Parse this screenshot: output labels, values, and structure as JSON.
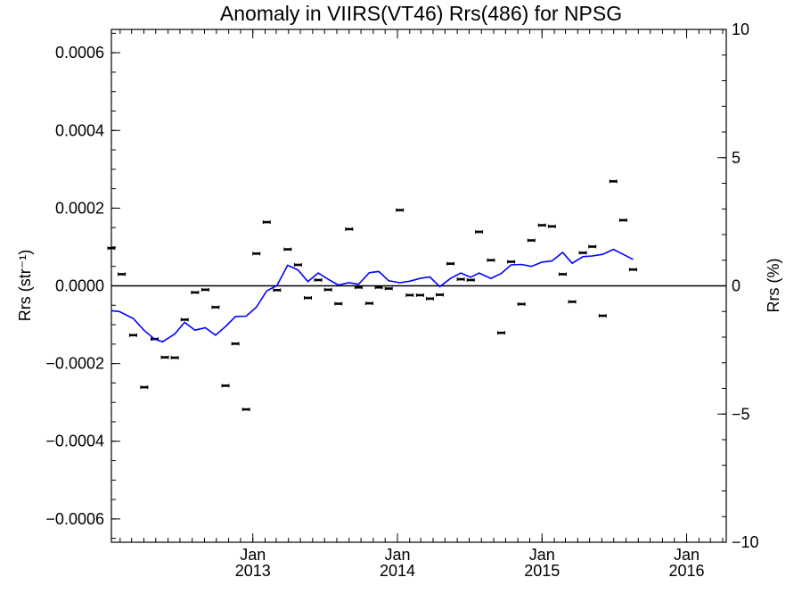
{
  "chart_data": {
    "type": "scatter",
    "title": "Anomaly in VIIRS(VT46) Rrs(486) for NPSG",
    "ylabel": "Rrs (str⁻¹)",
    "y2label": "Rrs (%)",
    "ylim": [
      -0.00066,
      0.00066
    ],
    "y2lim": [
      -10,
      10
    ],
    "xlim": [
      "2012-01-10",
      "2016-04-10"
    ],
    "yticks": [
      {
        "value": 0.0006,
        "label": "0.0006"
      },
      {
        "value": 0.0004,
        "label": "0.0004"
      },
      {
        "value": 0.0002,
        "label": "0.0002"
      },
      {
        "value": 0.0,
        "label": "0.0000"
      },
      {
        "value": -0.0002,
        "label": "−0.0002"
      },
      {
        "value": -0.0004,
        "label": "−0.0004"
      },
      {
        "value": -0.0006,
        "label": "−0.0006"
      }
    ],
    "y2ticks": [
      {
        "value": 10,
        "label": "10"
      },
      {
        "value": 5,
        "label": "5"
      },
      {
        "value": 0,
        "label": "0"
      },
      {
        "value": -5,
        "label": "−5"
      },
      {
        "value": -10,
        "label": "−10"
      }
    ],
    "xticks": [
      {
        "date": "2013-01-01",
        "line1": "Jan",
        "line2": "2013"
      },
      {
        "date": "2014-01-01",
        "line1": "Jan",
        "line2": "2014"
      },
      {
        "date": "2015-01-01",
        "line1": "Jan",
        "line2": "2015"
      },
      {
        "date": "2016-01-01",
        "line1": "Jan",
        "line2": "2016"
      }
    ],
    "series": [
      {
        "style": "points",
        "color": "#000000",
        "points": [
          [
            "2012-01-10",
            9.7e-05
          ],
          [
            "2012-02-05",
            3e-05
          ],
          [
            "2012-03-05",
            -0.000127
          ],
          [
            "2012-04-02",
            -0.000261
          ],
          [
            "2012-04-28",
            -0.000137
          ],
          [
            "2012-05-24",
            -0.000184
          ],
          [
            "2012-06-18",
            -0.000185
          ],
          [
            "2012-07-13",
            -8.7e-05
          ],
          [
            "2012-08-08",
            -1.7e-05
          ],
          [
            "2012-09-03",
            -1e-05
          ],
          [
            "2012-09-29",
            -5.5e-05
          ],
          [
            "2012-10-24",
            -0.000257
          ],
          [
            "2012-11-18",
            -0.000149
          ],
          [
            "2012-12-15",
            -0.000318
          ],
          [
            "2013-01-10",
            8.3e-05
          ],
          [
            "2013-02-05",
            0.000164
          ],
          [
            "2013-03-03",
            -1.1e-05
          ],
          [
            "2013-03-30",
            9.4e-05
          ],
          [
            "2013-04-25",
            5.4e-05
          ],
          [
            "2013-05-20",
            -3.1e-05
          ],
          [
            "2013-06-15",
            1.5e-05
          ],
          [
            "2013-07-10",
            -1e-05
          ],
          [
            "2013-08-05",
            -4.6e-05
          ],
          [
            "2013-09-01",
            0.000146
          ],
          [
            "2013-09-25",
            -4e-06
          ],
          [
            "2013-10-22",
            -4.5e-05
          ],
          [
            "2013-11-15",
            -4e-06
          ],
          [
            "2013-12-10",
            -7e-06
          ],
          [
            "2014-01-07",
            0.000195
          ],
          [
            "2014-02-01",
            -2.4e-05
          ],
          [
            "2014-02-27",
            -2.4e-05
          ],
          [
            "2014-03-24",
            -3.3e-05
          ],
          [
            "2014-04-18",
            -2.3e-05
          ],
          [
            "2014-05-15",
            5.7e-05
          ],
          [
            "2014-06-10",
            1.7e-05
          ],
          [
            "2014-07-05",
            1.5e-05
          ],
          [
            "2014-07-26",
            0.000139
          ],
          [
            "2014-08-25",
            6.6e-05
          ],
          [
            "2014-09-20",
            -0.000121
          ],
          [
            "2014-10-15",
            6.2e-05
          ],
          [
            "2014-11-10",
            -4.7e-05
          ],
          [
            "2014-12-05",
            0.000117
          ],
          [
            "2015-01-01",
            0.000156
          ],
          [
            "2015-01-26",
            0.000153
          ],
          [
            "2015-02-22",
            3e-05
          ],
          [
            "2015-03-18",
            -4.1e-05
          ],
          [
            "2015-04-14",
            8.5e-05
          ],
          [
            "2015-05-08",
            0.000101
          ],
          [
            "2015-06-03",
            -7.7e-05
          ],
          [
            "2015-06-30",
            0.000269
          ],
          [
            "2015-07-25",
            0.000169
          ],
          [
            "2015-08-19",
            4.2e-05
          ]
        ]
      },
      {
        "style": "line",
        "color": "#0000ff",
        "points": [
          [
            "2012-01-10",
            -6.4e-05
          ],
          [
            "2012-01-30",
            -6.6e-05
          ],
          [
            "2012-03-05",
            -8.4e-05
          ],
          [
            "2012-04-02",
            -0.000115
          ],
          [
            "2012-04-28",
            -0.000137
          ],
          [
            "2012-05-18",
            -0.000144
          ],
          [
            "2012-06-18",
            -0.000124
          ],
          [
            "2012-07-13",
            -9.4e-05
          ],
          [
            "2012-08-08",
            -0.000114
          ],
          [
            "2012-09-03",
            -0.000108
          ],
          [
            "2012-09-29",
            -0.000127
          ],
          [
            "2012-10-24",
            -0.000105
          ],
          [
            "2012-11-18",
            -7.9e-05
          ],
          [
            "2012-12-15",
            -7.8e-05
          ],
          [
            "2013-01-10",
            -5.5e-05
          ],
          [
            "2013-02-05",
            -1.3e-05
          ],
          [
            "2013-03-03",
            1e-06
          ],
          [
            "2013-03-30",
            5.3e-05
          ],
          [
            "2013-04-25",
            4.1e-05
          ],
          [
            "2013-05-20",
            1.1e-05
          ],
          [
            "2013-06-15",
            3.3e-05
          ],
          [
            "2013-07-10",
            1.7e-05
          ],
          [
            "2013-08-05",
            2e-06
          ],
          [
            "2013-09-01",
            8e-06
          ],
          [
            "2013-09-25",
            4e-06
          ],
          [
            "2013-10-22",
            3.4e-05
          ],
          [
            "2013-11-15",
            3.7e-05
          ],
          [
            "2013-12-10",
            1.3e-05
          ],
          [
            "2014-01-07",
            8e-06
          ],
          [
            "2014-02-01",
            1.2e-05
          ],
          [
            "2014-02-27",
            1.9e-05
          ],
          [
            "2014-03-24",
            2.3e-05
          ],
          [
            "2014-04-18",
            -2e-06
          ],
          [
            "2014-05-15",
            1.9e-05
          ],
          [
            "2014-06-10",
            3.3e-05
          ],
          [
            "2014-07-05",
            2.2e-05
          ],
          [
            "2014-07-26",
            3.3e-05
          ],
          [
            "2014-08-25",
            1.9e-05
          ],
          [
            "2014-09-20",
            3.2e-05
          ],
          [
            "2014-10-15",
            5.4e-05
          ],
          [
            "2014-11-10",
            5.5e-05
          ],
          [
            "2014-12-05",
            5e-05
          ],
          [
            "2015-01-01",
            6.1e-05
          ],
          [
            "2015-01-26",
            6.4e-05
          ],
          [
            "2015-02-22",
            8.6e-05
          ],
          [
            "2015-03-18",
            5.8e-05
          ],
          [
            "2015-04-14",
            7.5e-05
          ],
          [
            "2015-05-08",
            7.7e-05
          ],
          [
            "2015-06-03",
            8.1e-05
          ],
          [
            "2015-06-30",
            9.4e-05
          ],
          [
            "2015-07-25",
            8.1e-05
          ],
          [
            "2015-08-19",
            6.8e-05
          ]
        ]
      }
    ],
    "zero_line": true,
    "grid": false
  }
}
